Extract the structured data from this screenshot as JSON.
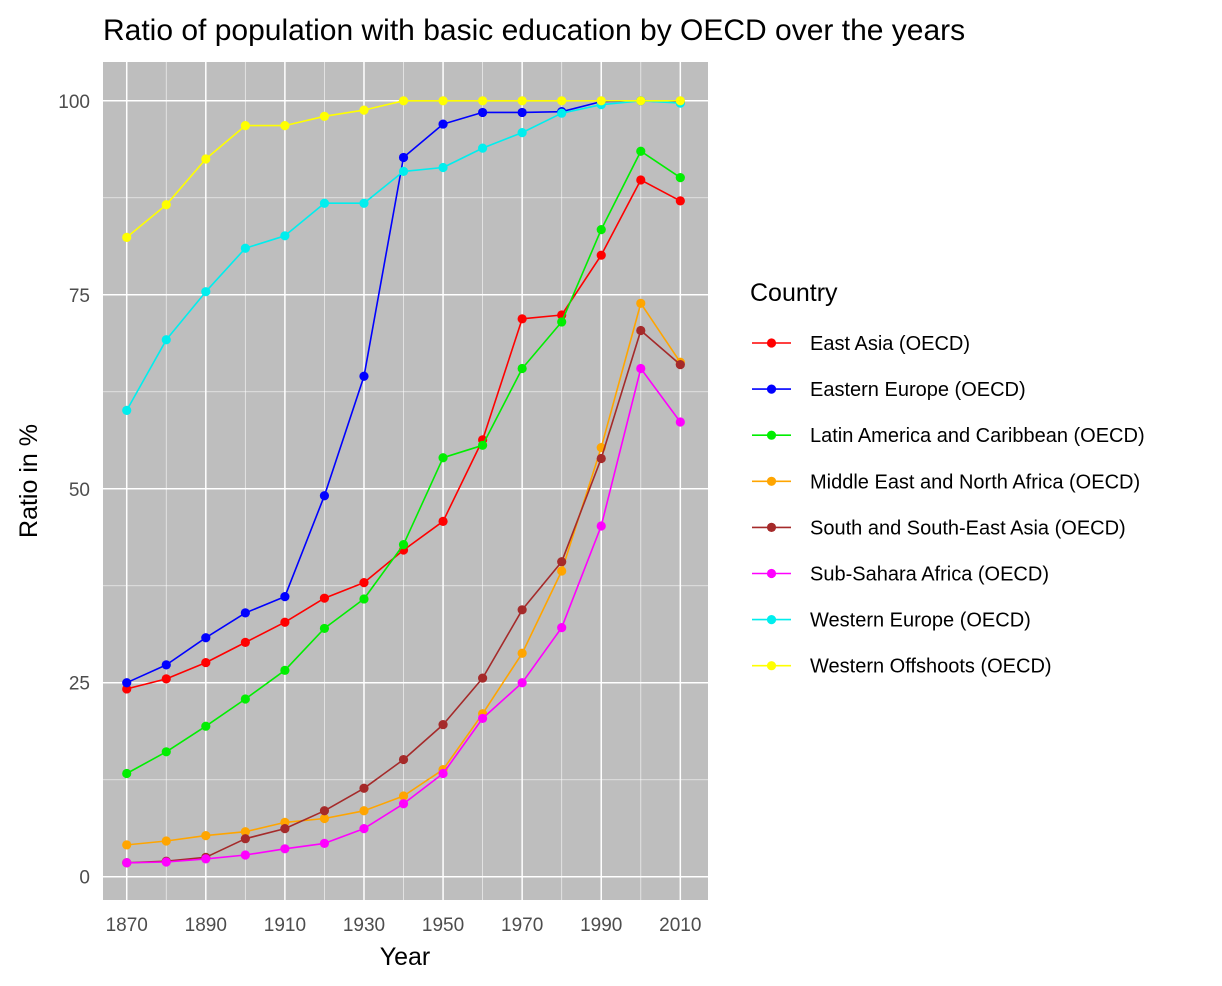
{
  "chart_data": {
    "type": "line",
    "title": "Ratio of population with basic education by OECD over the years",
    "xlabel": "Year",
    "ylabel": "Ratio in %",
    "x": [
      1870,
      1880,
      1890,
      1900,
      1910,
      1920,
      1930,
      1940,
      1950,
      1960,
      1970,
      1980,
      1990,
      2000,
      2010
    ],
    "xticks": [
      "1870",
      "1890",
      "1910",
      "1930",
      "1950",
      "1970",
      "1990",
      "2010"
    ],
    "yticks": [
      "0",
      "25",
      "50",
      "75",
      "100"
    ],
    "xlim": [
      1864,
      2017
    ],
    "ylim": [
      -3,
      105
    ],
    "grid": true,
    "panel_background": "#bebebe",
    "legend_title": "Country",
    "legend_position": "right",
    "series": [
      {
        "name": "East Asia (OECD)",
        "color": "#ff0000",
        "values": [
          24.2,
          25.5,
          27.6,
          30.2,
          32.8,
          35.9,
          37.9,
          42.1,
          45.8,
          56.3,
          71.9,
          72.4,
          80.1,
          89.8,
          87.1
        ]
      },
      {
        "name": "Eastern Europe (OECD)",
        "color": "#0000ff",
        "values": [
          25.0,
          27.3,
          30.8,
          34.0,
          36.1,
          49.1,
          64.5,
          92.7,
          97.0,
          98.5,
          98.5,
          98.6,
          99.9,
          100.0,
          99.8
        ]
      },
      {
        "name": "Latin America and Caribbean (OECD)",
        "color": "#00ee00",
        "values": [
          13.3,
          16.1,
          19.4,
          22.9,
          26.6,
          32.0,
          35.8,
          42.8,
          54.0,
          55.6,
          65.5,
          71.5,
          83.4,
          93.5,
          90.1
        ]
      },
      {
        "name": "Middle East and North Africa (OECD)",
        "color": "#ffa500",
        "values": [
          4.1,
          4.6,
          5.3,
          5.8,
          7.0,
          7.5,
          8.5,
          10.4,
          13.8,
          21.0,
          28.8,
          39.4,
          55.3,
          73.9,
          66.3
        ]
      },
      {
        "name": "South and South-East Asia (OECD)",
        "color": "#a52a2a",
        "values": [
          1.8,
          2.0,
          2.5,
          4.9,
          6.2,
          8.5,
          11.4,
          15.1,
          19.6,
          25.6,
          34.4,
          40.6,
          53.9,
          70.4,
          66.0
        ]
      },
      {
        "name": "Sub-Sahara Africa (OECD)",
        "color": "#ff00ff",
        "values": [
          1.8,
          1.9,
          2.3,
          2.8,
          3.6,
          4.3,
          6.2,
          9.4,
          13.3,
          20.4,
          25.0,
          32.1,
          45.2,
          65.5,
          58.6
        ]
      },
      {
        "name": "Western Europe (OECD)",
        "color": "#00eeee",
        "values": [
          60.1,
          69.2,
          75.4,
          81.0,
          82.6,
          86.8,
          86.8,
          90.9,
          91.4,
          93.9,
          95.9,
          98.4,
          99.5,
          100.0,
          99.7
        ]
      },
      {
        "name": "Western Offshoots (OECD)",
        "color": "#ffff00",
        "values": [
          82.4,
          86.6,
          92.5,
          96.8,
          96.8,
          98.0,
          98.8,
          100.0,
          100.0,
          100.0,
          100.0,
          100.0,
          100.0,
          100.0,
          100.0
        ]
      }
    ]
  }
}
